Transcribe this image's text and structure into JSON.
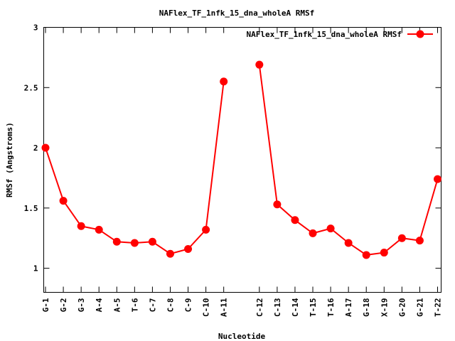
{
  "chart_data": {
    "type": "line",
    "title": "NAFlex_TF_1nfk_15_dna_wholeA RMSf",
    "xlabel": "Nucleotide",
    "ylabel": "RMSf (Angstroms)",
    "ylim": [
      0.8,
      3.0
    ],
    "yticks": [
      "1",
      "1.5",
      "2",
      "2.5",
      "3"
    ],
    "x_range": [
      0.9,
      23.2
    ],
    "categories": [
      "G-1",
      "G-2",
      "G-3",
      "A-4",
      "A-5",
      "T-6",
      "C-7",
      "C-8",
      "C-9",
      "C-10",
      "A-11",
      "C-12",
      "C-13",
      "C-14",
      "T-15",
      "T-16",
      "A-17",
      "G-18",
      "X-19",
      "G-20",
      "G-21",
      "T-22"
    ],
    "category_positions": [
      1,
      2,
      3,
      4,
      5,
      6,
      7,
      8,
      9,
      10,
      11,
      13,
      14,
      15,
      16,
      17,
      18,
      19,
      20,
      21,
      22,
      23
    ],
    "series": [
      {
        "name": "NAFlex_TF_1nfk_15_dna_wholeA RMSf",
        "color": "#ff0000",
        "x": [
          1,
          2,
          3,
          4,
          5,
          6,
          7,
          8,
          9,
          10,
          11,
          13,
          14,
          15,
          16,
          17,
          18,
          19,
          20,
          21,
          22,
          23
        ],
        "values": [
          2.0,
          1.56,
          1.35,
          1.32,
          1.22,
          1.21,
          1.22,
          1.12,
          1.16,
          1.32,
          2.55,
          2.69,
          1.53,
          1.4,
          1.29,
          1.33,
          1.21,
          1.11,
          1.13,
          1.25,
          1.23,
          1.74
        ],
        "segments": [
          [
            0,
            10
          ],
          [
            11,
            21
          ]
        ]
      }
    ],
    "legend_position": "top-right",
    "grid": false
  }
}
